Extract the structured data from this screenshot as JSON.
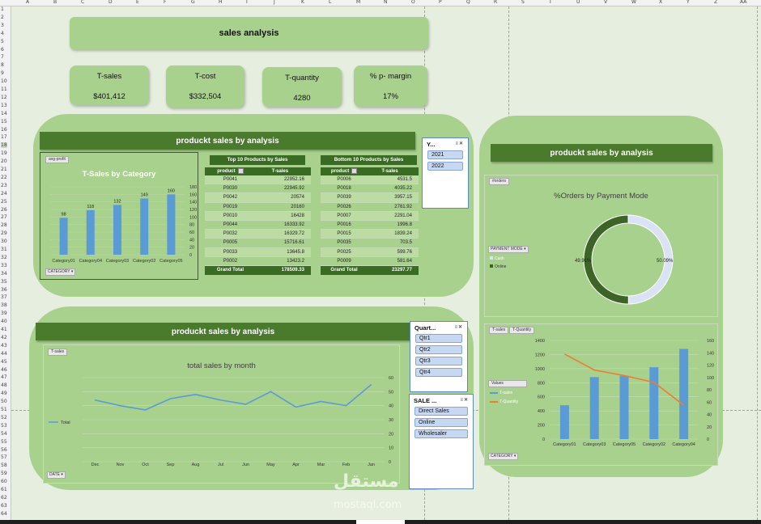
{
  "sheet": {
    "columns": [
      "A",
      "B",
      "C",
      "D",
      "E",
      "F",
      "G",
      "H",
      "I",
      "J",
      "K",
      "L",
      "M",
      "N",
      "O",
      "P",
      "Q",
      "R",
      "S",
      "T",
      "U",
      "V",
      "W",
      "X",
      "Y",
      "Z",
      "AA"
    ],
    "selected_row": "18"
  },
  "header": {
    "title": "sales analysis"
  },
  "kpis": [
    {
      "label": "T-sales",
      "value": "$401,412"
    },
    {
      "label": "T-cost",
      "value": "$332,504"
    },
    {
      "label": "T-quantity",
      "value": "4280"
    },
    {
      "label": "% p- margin",
      "value": "17%"
    }
  ],
  "panel_title": "produckt sales by analysis",
  "category_chart": {
    "pill": "avg-profit",
    "filter": "CATEGORY",
    "chart_data": {
      "type": "bar",
      "title": "T-Sales by Category",
      "categories": [
        "Category01",
        "Category04",
        "Category03",
        "Category02",
        "Category05"
      ],
      "values": [
        98,
        118,
        132,
        149,
        160
      ],
      "ylim": [
        0,
        180
      ],
      "yticks": [
        "0",
        "20",
        "40",
        "60",
        "80",
        "100",
        "120",
        "140",
        "160",
        "180"
      ],
      "color": "#5b9bd5"
    }
  },
  "top_table": {
    "title": "Top 10 Products by Sales",
    "col1": "product",
    "col2": "T-sales",
    "rows": [
      [
        "P0041",
        "22952.16"
      ],
      [
        "P0030",
        "22945.92"
      ],
      [
        "P0042",
        "20574"
      ],
      [
        "P0019",
        "20160"
      ],
      [
        "P0010",
        "16428"
      ],
      [
        "P0044",
        "16333.92"
      ],
      [
        "P0032",
        "16329.72"
      ],
      [
        "P0005",
        "15716.61"
      ],
      [
        "P0033",
        "13645.8"
      ],
      [
        "P0002",
        "13423.2"
      ]
    ],
    "total_label": "Grand Total",
    "total": "178509.33"
  },
  "bottom_table": {
    "title": "Bottom 10 Products by Sales",
    "col1": "product",
    "col2": "T-sales",
    "rows": [
      [
        "P0006",
        "4531.5"
      ],
      [
        "P0018",
        "4035.22"
      ],
      [
        "P0039",
        "3957.15"
      ],
      [
        "P0026",
        "2761.92"
      ],
      [
        "P0007",
        "2291.04"
      ],
      [
        "P0016",
        "1996.8"
      ],
      [
        "P0015",
        "1839.24"
      ],
      [
        "P0035",
        "703.5"
      ],
      [
        "P0025",
        "599.76"
      ],
      [
        "P0009",
        "581.64"
      ]
    ],
    "total_label": "Grand Total",
    "total": "23297.77"
  },
  "year_slicer": {
    "title": "Y...",
    "items": [
      "2021",
      "2022"
    ]
  },
  "quarter_slicer": {
    "title": "Quart...",
    "items": [
      "Qtr1",
      "Qtr2",
      "Qtr3",
      "Qtr4"
    ]
  },
  "sale_slicer": {
    "title": "SALE ...",
    "items": [
      "Direct Sales",
      "Online",
      "Wholesaler"
    ]
  },
  "month_chart": {
    "pill": "T-sales",
    "filter": "DATE",
    "chart_data": {
      "type": "line",
      "title": "total sales by month",
      "x": [
        "Dec",
        "Nov",
        "Oct",
        "Sep",
        "Aug",
        "Jul",
        "Jun",
        "May",
        "Apr",
        "Mar",
        "Feb",
        "Jan"
      ],
      "series": [
        {
          "name": "Total",
          "values": [
            44,
            40,
            37,
            45,
            48,
            44,
            41,
            50,
            39,
            43,
            40,
            55
          ]
        }
      ],
      "ylim": [
        0,
        60
      ],
      "yticks": [
        "0",
        "10",
        "20",
        "30",
        "40",
        "50",
        "60"
      ],
      "color": "#5b9bd5"
    }
  },
  "payment_chart": {
    "pill": "#orders",
    "filter": "PAYMENT  MODE",
    "chart_data": {
      "type": "pie",
      "title": "%Orders by Payment Mode",
      "labels": [
        "Cash",
        "Online"
      ],
      "values": [
        49.91,
        50.09
      ],
      "value_labels": [
        "49.91%",
        "50.09%"
      ],
      "colors": [
        "#3d6327",
        "#dae3f3"
      ]
    }
  },
  "combo_chart": {
    "pills": [
      "T-sales",
      "T-Quantity"
    ],
    "filter": "CATEGORY",
    "legend_title": "Values",
    "chart_data": {
      "type": "bar",
      "categories": [
        "Category01",
        "Category03",
        "Category05",
        "Category02",
        "Category04"
      ],
      "series": [
        {
          "name": "T-sales",
          "values": [
            480,
            880,
            900,
            1020,
            1280
          ],
          "axis": "left",
          "color": "#5b9bd5"
        },
        {
          "name": "T-Quantity",
          "values": [
            138,
            112,
            103,
            92,
            55
          ],
          "axis": "right",
          "color": "#ed7d31"
        }
      ],
      "ylim_left": [
        0,
        1400
      ],
      "yticks_left": [
        "0",
        "200",
        "400",
        "600",
        "800",
        "1000",
        "1200",
        "1400"
      ],
      "ylim_right": [
        0,
        160
      ],
      "yticks_right": [
        "0",
        "20",
        "40",
        "60",
        "80",
        "100",
        "120",
        "140",
        "160"
      ]
    }
  },
  "watermark": {
    "arabic": "مستقل",
    "latin": "mostaql.com"
  }
}
